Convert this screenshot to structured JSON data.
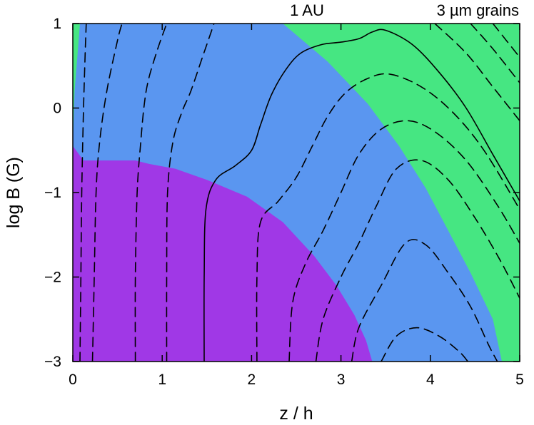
{
  "chart_data": {
    "type": "heatmap",
    "title": "",
    "annotations": [
      "1 AU",
      "3 µm grains"
    ],
    "xlabel": "z / h",
    "ylabel": "log B (G)",
    "xlim": [
      0,
      5
    ],
    "ylim": [
      -3,
      1
    ],
    "xticks": [
      0,
      1,
      2,
      3,
      4,
      5
    ],
    "xtick_labels": [
      "0",
      "1",
      "2",
      "3",
      "4",
      "5"
    ],
    "yticks": [
      1,
      0,
      -1,
      -2,
      -3
    ],
    "ytick_labels": [
      "1",
      "0",
      "−1",
      "−2",
      "−3"
    ],
    "grid": false,
    "legend": "none",
    "colors": {
      "purple": "#a038e6",
      "blue": "#5a96f0",
      "green": "#46e682"
    },
    "regions": [
      {
        "color": "green",
        "points": [
          [
            0,
            -0.45
          ],
          [
            0.02,
            0.2
          ],
          [
            0.05,
            0.6
          ],
          [
            0.08,
            1
          ],
          [
            0,
            1
          ]
        ]
      },
      {
        "color": "green",
        "points": [
          [
            2.35,
            1
          ],
          [
            2.85,
            0.55
          ],
          [
            3.3,
            0.05
          ],
          [
            3.65,
            -0.45
          ],
          [
            3.95,
            -0.95
          ],
          [
            4.2,
            -1.45
          ],
          [
            4.45,
            -1.95
          ],
          [
            4.7,
            -2.5
          ],
          [
            4.8,
            -3
          ],
          [
            5,
            -3
          ],
          [
            5,
            1
          ]
        ]
      },
      {
        "color": "purple",
        "points": [
          [
            0,
            -3
          ],
          [
            0,
            -0.45
          ],
          [
            0.12,
            -0.62
          ],
          [
            0.7,
            -0.62
          ],
          [
            0.85,
            -0.66
          ],
          [
            1.15,
            -0.72
          ],
          [
            1.5,
            -0.85
          ],
          [
            1.95,
            -1.05
          ],
          [
            2.35,
            -1.35
          ],
          [
            2.7,
            -1.75
          ],
          [
            2.95,
            -2.1
          ],
          [
            3.15,
            -2.45
          ],
          [
            3.28,
            -2.75
          ],
          [
            3.35,
            -3
          ]
        ]
      }
    ],
    "contours": [
      {
        "style": "dashed",
        "points": [
          [
            0.08,
            -3
          ],
          [
            0.09,
            -2
          ],
          [
            0.1,
            -1
          ],
          [
            0.12,
            0
          ],
          [
            0.14,
            0.7
          ],
          [
            0.15,
            1
          ]
        ]
      },
      {
        "style": "dashed",
        "points": [
          [
            0.22,
            -3
          ],
          [
            0.24,
            -2
          ],
          [
            0.26,
            -1
          ],
          [
            0.3,
            -0.4
          ],
          [
            0.38,
            0.2
          ],
          [
            0.5,
            0.8
          ],
          [
            0.55,
            1
          ]
        ]
      },
      {
        "style": "dashed",
        "points": [
          [
            0.7,
            -3
          ],
          [
            0.7,
            -2
          ],
          [
            0.72,
            -1
          ],
          [
            0.76,
            -0.4
          ],
          [
            0.8,
            0.05
          ],
          [
            0.85,
            0.35
          ],
          [
            0.95,
            0.7
          ],
          [
            1.05,
            1
          ]
        ]
      },
      {
        "style": "dashed",
        "points": [
          [
            1.05,
            -3
          ],
          [
            1.05,
            -2
          ],
          [
            1.06,
            -1
          ],
          [
            1.12,
            -0.4
          ],
          [
            1.22,
            -0.05
          ],
          [
            1.32,
            0.2
          ],
          [
            1.45,
            0.6
          ],
          [
            1.58,
            1
          ]
        ]
      },
      {
        "style": "solid",
        "points": [
          [
            1.47,
            -3
          ],
          [
            1.47,
            -2
          ],
          [
            1.49,
            -1.2
          ],
          [
            1.6,
            -0.85
          ],
          [
            1.82,
            -0.68
          ],
          [
            2.0,
            -0.5
          ],
          [
            2.1,
            -0.2
          ],
          [
            2.22,
            0.15
          ],
          [
            2.38,
            0.45
          ],
          [
            2.55,
            0.65
          ],
          [
            2.78,
            0.75
          ],
          [
            3.0,
            0.78
          ],
          [
            3.2,
            0.82
          ],
          [
            3.35,
            0.9
          ],
          [
            3.5,
            0.92
          ],
          [
            3.8,
            0.75
          ],
          [
            4.1,
            0.42
          ],
          [
            4.4,
            0.0
          ],
          [
            4.7,
            -0.55
          ],
          [
            5,
            -1.1
          ]
        ]
      },
      {
        "style": "dashed",
        "points": [
          [
            2.06,
            -3
          ],
          [
            2.06,
            -2
          ],
          [
            2.1,
            -1.35
          ],
          [
            2.3,
            -1.1
          ],
          [
            2.5,
            -0.82
          ],
          [
            2.68,
            -0.45
          ],
          [
            2.85,
            -0.1
          ],
          [
            3.05,
            0.18
          ],
          [
            3.3,
            0.35
          ],
          [
            3.55,
            0.4
          ],
          [
            3.9,
            0.25
          ],
          [
            4.25,
            -0.05
          ],
          [
            4.6,
            -0.5
          ],
          [
            5,
            -1.2
          ]
        ]
      },
      {
        "style": "dashed",
        "points": [
          [
            2.42,
            -3
          ],
          [
            2.46,
            -2.3
          ],
          [
            2.6,
            -1.85
          ],
          [
            2.8,
            -1.45
          ],
          [
            3.0,
            -1.0
          ],
          [
            3.2,
            -0.55
          ],
          [
            3.45,
            -0.25
          ],
          [
            3.75,
            -0.15
          ],
          [
            4.05,
            -0.28
          ],
          [
            4.4,
            -0.62
          ],
          [
            4.75,
            -1.15
          ],
          [
            5,
            -1.6
          ]
        ]
      },
      {
        "style": "dashed",
        "points": [
          [
            2.72,
            -3
          ],
          [
            2.8,
            -2.5
          ],
          [
            3.0,
            -2.0
          ],
          [
            3.2,
            -1.6
          ],
          [
            3.4,
            -1.15
          ],
          [
            3.62,
            -0.72
          ],
          [
            3.9,
            -0.62
          ],
          [
            4.2,
            -0.85
          ],
          [
            4.5,
            -1.3
          ],
          [
            4.78,
            -1.8
          ],
          [
            5,
            -2.25
          ]
        ]
      },
      {
        "style": "dashed",
        "points": [
          [
            3.12,
            -3
          ],
          [
            3.2,
            -2.6
          ],
          [
            3.45,
            -2.1
          ],
          [
            3.72,
            -1.6
          ],
          [
            3.95,
            -1.62
          ],
          [
            4.2,
            -1.95
          ],
          [
            4.45,
            -2.35
          ],
          [
            4.65,
            -2.8
          ],
          [
            4.75,
            -3
          ]
        ]
      },
      {
        "style": "dashed",
        "points": [
          [
            3.45,
            -3
          ],
          [
            3.62,
            -2.7
          ],
          [
            3.85,
            -2.6
          ],
          [
            4.1,
            -2.7
          ],
          [
            4.32,
            -2.88
          ],
          [
            4.42,
            -3
          ]
        ]
      },
      {
        "style": "dashed",
        "points": [
          [
            4.05,
            1
          ],
          [
            4.4,
            0.65
          ],
          [
            4.7,
            0.25
          ],
          [
            5,
            -0.15
          ]
        ]
      },
      {
        "style": "dashed",
        "points": [
          [
            4.45,
            1
          ],
          [
            4.7,
            0.7
          ],
          [
            5,
            0.3
          ]
        ]
      },
      {
        "style": "dashed",
        "points": [
          [
            4.7,
            1
          ],
          [
            4.85,
            0.8
          ],
          [
            5,
            0.6
          ]
        ]
      }
    ]
  }
}
